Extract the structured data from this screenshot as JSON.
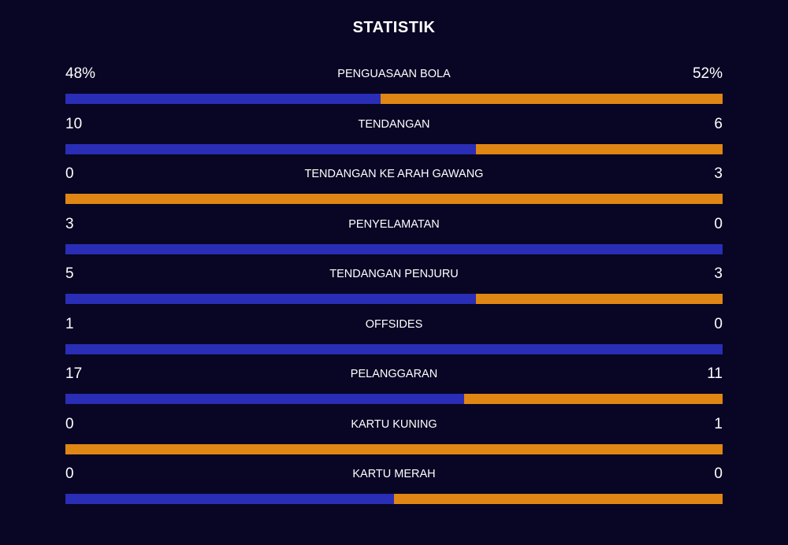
{
  "title": "STATISTIK",
  "colors": {
    "background": "#080624",
    "home": "#2a2db5",
    "away": "#e08614"
  },
  "stats": [
    {
      "label": "PENGUASAAN BOLA",
      "home": "48%",
      "away": "52%",
      "home_share": 0.48
    },
    {
      "label": "TENDANGAN",
      "home": "10",
      "away": "6",
      "home_share": 0.625
    },
    {
      "label": "TENDANGAN KE ARAH GAWANG",
      "home": "0",
      "away": "3",
      "home_share": 0
    },
    {
      "label": "PENYELAMATAN",
      "home": "3",
      "away": "0",
      "home_share": 1
    },
    {
      "label": "TENDANGAN PENJURU",
      "home": "5",
      "away": "3",
      "home_share": 0.625
    },
    {
      "label": "OFFSIDES",
      "home": "1",
      "away": "0",
      "home_share": 1
    },
    {
      "label": "PELANGGARAN",
      "home": "17",
      "away": "11",
      "home_share": 0.607
    },
    {
      "label": "KARTU KUNING",
      "home": "0",
      "away": "1",
      "home_share": 0
    },
    {
      "label": "KARTU MERAH",
      "home": "0",
      "away": "0",
      "home_share": 0.5
    }
  ]
}
